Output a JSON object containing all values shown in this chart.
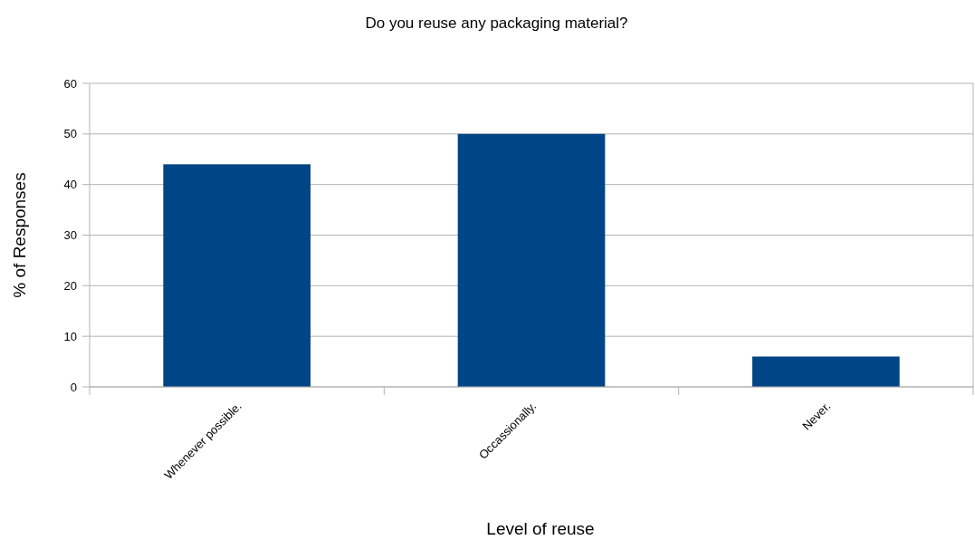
{
  "chart_data": {
    "type": "bar",
    "title": "Do you reuse any packaging material?",
    "xlabel": "Level of reuse",
    "ylabel": "% of Responses",
    "categories": [
      "Whenever possible.",
      "Occassionally.",
      "Never."
    ],
    "values": [
      44,
      50,
      6
    ],
    "color": "#004586",
    "ylim": [
      0,
      60
    ],
    "yticks": [
      0,
      10,
      20,
      30,
      40,
      50,
      60
    ],
    "grid": "y"
  }
}
